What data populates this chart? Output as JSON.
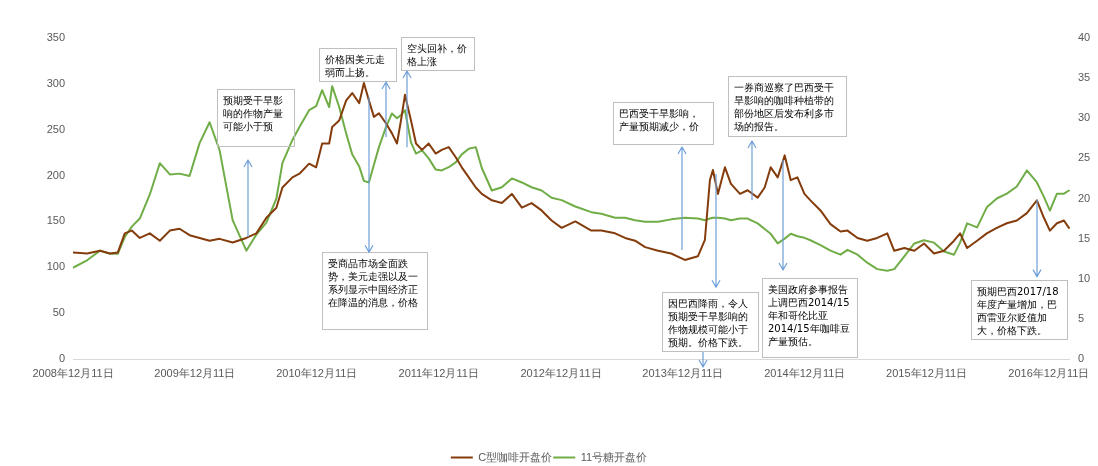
{
  "chart_data": {
    "type": "line",
    "x": [
      "2008-12-12",
      "2009-01-22",
      "2009-03-02",
      "2009-04-01",
      "2009-04-24",
      "2009-05-15",
      "2009-06-05",
      "2009-06-29",
      "2009-07-29",
      "2009-08-28",
      "2009-09-27",
      "2009-10-26",
      "2009-11-25",
      "2009-12-25",
      "2010-01-24",
      "2010-02-23",
      "2010-04-03",
      "2010-05-14",
      "2010-06-13",
      "2010-07-13",
      "2010-08-12",
      "2010-08-30",
      "2010-09-29",
      "2010-10-20",
      "2010-11-18",
      "2010-12-09",
      "2010-12-27",
      "2011-01-17",
      "2011-01-26",
      "2011-02-16",
      "2011-03-09",
      "2011-03-27",
      "2011-04-17",
      "2011-05-01",
      "2011-05-16",
      "2011-05-31",
      "2011-06-15",
      "2011-07-06",
      "2011-07-24",
      "2011-08-08",
      "2011-08-20",
      "2011-09-01",
      "2011-09-19",
      "2011-10-04",
      "2011-10-22",
      "2011-11-11",
      "2011-12-02",
      "2011-12-20",
      "2012-01-10",
      "2012-01-31",
      "2012-02-18",
      "2012-03-10",
      "2012-03-31",
      "2012-04-18",
      "2012-05-18",
      "2012-06-17",
      "2012-07-17",
      "2012-08-16",
      "2012-09-14",
      "2012-10-14",
      "2012-11-13",
      "2012-12-13",
      "2013-01-23",
      "2013-03-12",
      "2013-04-11",
      "2013-05-22",
      "2013-06-21",
      "2013-07-21",
      "2013-08-20",
      "2013-09-28",
      "2013-11-06",
      "2013-12-17",
      "2014-01-25",
      "2014-02-15",
      "2014-03-02",
      "2014-03-11",
      "2014-03-26",
      "2014-04-16",
      "2014-05-04",
      "2014-05-31",
      "2014-06-23",
      "2014-07-23",
      "2014-08-13",
      "2014-08-31",
      "2014-09-21",
      "2014-10-12",
      "2014-10-30",
      "2014-11-19",
      "2014-12-10",
      "2014-12-28",
      "2015-01-27",
      "2015-02-26",
      "2015-03-28",
      "2015-04-18",
      "2015-05-18",
      "2015-06-16",
      "2015-07-16",
      "2015-08-15",
      "2015-09-05",
      "2015-10-05",
      "2015-11-04",
      "2015-12-03",
      "2016-01-02",
      "2016-02-01",
      "2016-03-02",
      "2016-03-20",
      "2016-04-10",
      "2016-05-10",
      "2016-06-08",
      "2016-07-08",
      "2016-08-07",
      "2016-09-06",
      "2016-10-06",
      "2016-11-05",
      "2016-11-26",
      "2016-12-14",
      "2017-01-04",
      "2017-01-25",
      "2017-02-09"
    ],
    "series": [
      {
        "name": "C型咖啡开盘价",
        "color": "#843c0c",
        "values": [
          116,
          115,
          118,
          115,
          116,
          137,
          140,
          132,
          137,
          129,
          140,
          142,
          135,
          132,
          129,
          131,
          127,
          132,
          137,
          154,
          165,
          187,
          198,
          202,
          213,
          209,
          235,
          235,
          253,
          260,
          282,
          290,
          279,
          301,
          282,
          264,
          268,
          257,
          246,
          235,
          260,
          288,
          260,
          235,
          228,
          235,
          224,
          228,
          231,
          220,
          209,
          198,
          187,
          180,
          173,
          170,
          180,
          165,
          170,
          162,
          151,
          143,
          150,
          140,
          140,
          137,
          132,
          129,
          122,
          118,
          115,
          108,
          112,
          130,
          195,
          206,
          180,
          209,
          191,
          180,
          184,
          176,
          187,
          209,
          198,
          222,
          195,
          198,
          180,
          173,
          162,
          147,
          139,
          140,
          132,
          129,
          132,
          137,
          118,
          121,
          118,
          126,
          115,
          118,
          129,
          137,
          121,
          129,
          137,
          143,
          148,
          151,
          159,
          173,
          154,
          140,
          148,
          151,
          143
        ]
      },
      {
        "name": "11号糖开盘价",
        "color": "#70ad47",
        "axis": "y2",
        "values": [
          11.4,
          12.3,
          13.5,
          13.1,
          13.1,
          15.2,
          16.5,
          17.5,
          20.5,
          24.4,
          23.0,
          23.1,
          22.8,
          26.9,
          29.5,
          26.0,
          17.3,
          13.5,
          15.5,
          17.0,
          20.0,
          24.4,
          27.3,
          28.9,
          31.0,
          31.5,
          33.5,
          31.4,
          34.0,
          31.4,
          28.1,
          25.5,
          24.0,
          22.2,
          22.0,
          24.2,
          26.4,
          28.9,
          30.6,
          30.0,
          30.4,
          31.0,
          27.0,
          25.6,
          26.0,
          25.0,
          23.6,
          23.5,
          23.9,
          24.5,
          25.5,
          26.2,
          26.4,
          23.8,
          21.0,
          21.4,
          22.5,
          22.0,
          21.4,
          21.0,
          20.1,
          19.8,
          19.0,
          18.3,
          18.1,
          17.6,
          17.6,
          17.3,
          17.1,
          17.1,
          17.4,
          17.6,
          17.5,
          17.3,
          17.5,
          17.6,
          17.6,
          17.5,
          17.3,
          17.5,
          17.5,
          16.9,
          16.2,
          15.6,
          14.4,
          15.0,
          15.6,
          15.3,
          15.1,
          14.8,
          14.2,
          13.5,
          13.0,
          13.6,
          13.0,
          12.0,
          11.2,
          11.0,
          11.2,
          12.8,
          14.4,
          14.8,
          14.5,
          13.4,
          13.0,
          14.5,
          16.9,
          16.4,
          18.9,
          20.0,
          20.6,
          21.5,
          23.5,
          22.0,
          20.2,
          18.5,
          20.6,
          20.6,
          21.0
        ]
      }
    ],
    "xlim": [
      "2008-12-11",
      "2017-02-12"
    ],
    "xticks": [
      {
        "value": "2008-12-11",
        "label": "2008年12月11日"
      },
      {
        "value": "2009-12-11",
        "label": "2009年12月11日"
      },
      {
        "value": "2010-12-11",
        "label": "2010年12月11日"
      },
      {
        "value": "2011-12-11",
        "label": "2011年12月11日"
      },
      {
        "value": "2012-12-11",
        "label": "2012年12月11日"
      },
      {
        "value": "2013-12-11",
        "label": "2013年12月11日"
      },
      {
        "value": "2014-12-11",
        "label": "2014年12月11日"
      },
      {
        "value": "2015-12-11",
        "label": "2015年12月11日"
      },
      {
        "value": "2016-12-11",
        "label": "2016年12月11日"
      }
    ],
    "ylim": [
      0,
      350
    ],
    "yticks": [
      0,
      50,
      100,
      150,
      200,
      250,
      300,
      350
    ],
    "y2lim": [
      0,
      40
    ],
    "y2ticks": [
      0,
      5,
      10,
      15,
      20,
      25,
      30,
      35,
      40
    ],
    "legend": "bottom",
    "annotations": [
      "预期受干旱影响的作物产量可能小于预",
      {
        "text": "价格因美元走弱而上扬。",
        "x": "2011-07-06",
        "y": 242
      },
      {
        "text": "空头回补，价格上涨",
        "x": "2011-09-07",
        "y": 231
      },
      {
        "text": "受商品市场全面跌势，美元走强以及一系列显示中国经济正在降温的消息，价格",
        "x": "2011-05-16",
        "y": 286
      },
      "巴西受干旱影响，产量预期减少，价",
      {
        "text": "一券商巡察了巴西受干旱影响的咖啡种植带的部份地区后发布利多市场的报告。",
        "x": "2014-07-05",
        "y": 173
      },
      {
        "text": "因巴西降雨，令人预期受干旱影响的作物规模可能小于预期。价格下跌。",
        "x": "2014-03-20",
        "y": 202
      },
      "美国政府参事报告上调巴西2014/15年和哥伦比亚2014/15年咖啡豆产量预估。",
      {
        "text": "预期巴西2017/18年度产量增加，巴西雷亚尔贬值加大，价格下跌。",
        "x": "2016-11-05",
        "y": 173
      }
    ]
  }
}
